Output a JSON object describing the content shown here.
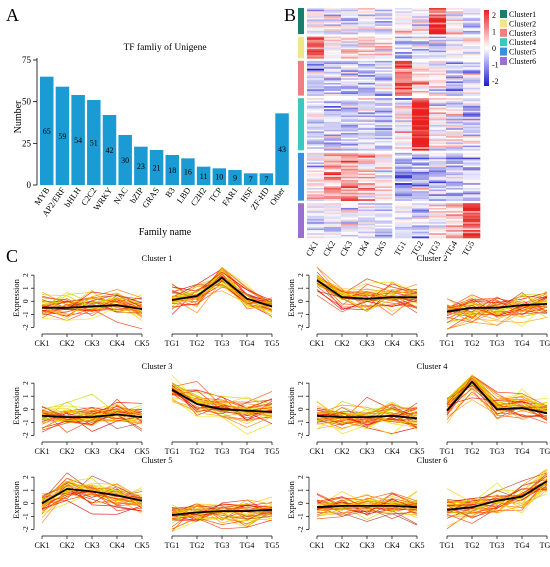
{
  "panels": {
    "a": "A",
    "b": "B",
    "c": "C"
  },
  "chart_data": [
    {
      "type": "bar",
      "title": "TF famliy of Unigene",
      "xlabel": "Family name",
      "ylabel": "Number",
      "categories": [
        "MYB",
        "AP2/ERF",
        "bHLH",
        "C2C2",
        "WRKY",
        "NAC",
        "bZIP",
        "GRAS",
        "B3",
        "LBD",
        "C2H2",
        "TCP",
        "FAR1",
        "HSF",
        "ZF-HD",
        "Other"
      ],
      "values": [
        65,
        59,
        54,
        51,
        42,
        30,
        23,
        21,
        18,
        16,
        11,
        10,
        9,
        7,
        7,
        43
      ],
      "ylim": [
        0,
        75
      ],
      "yticks": [
        0,
        25,
        50,
        75
      ],
      "bar_color": "#1b9bd3"
    },
    {
      "type": "heatmap",
      "columns": [
        "CK1",
        "CK2",
        "CK3",
        "CK4",
        "CK5",
        "TG1",
        "TG2",
        "TG3",
        "TG4",
        "TG5"
      ],
      "colorbar": {
        "ticks": [
          2,
          1,
          0,
          -1,
          -2
        ],
        "low": "#1b1bd0",
        "mid": "#ffffff",
        "high": "#e8201f"
      },
      "legend": [
        {
          "name": "Cluster1",
          "color": "#1b7d6b"
        },
        {
          "name": "Cluster2",
          "color": "#f0e68c"
        },
        {
          "name": "Cluster3",
          "color": "#f08080"
        },
        {
          "name": "Cluster4",
          "color": "#3cc8c0"
        },
        {
          "name": "Cluster5",
          "color": "#3a8fd8"
        },
        {
          "name": "Cluster6",
          "color": "#9b6fd0"
        }
      ],
      "cluster_row_fractions": [
        0.12,
        0.1,
        0.16,
        0.24,
        0.22,
        0.16
      ],
      "cluster_patterns": [
        [
          -0.2,
          -0.3,
          -0.1,
          0.0,
          -0.3,
          -0.1,
          0.0,
          2.0,
          0.1,
          -0.4
        ],
        [
          1.6,
          0.4,
          0.3,
          0.3,
          0.3,
          -0.6,
          -0.5,
          -0.5,
          -0.3,
          -0.2
        ],
        [
          -0.6,
          -0.5,
          -0.6,
          -0.4,
          -0.5,
          1.6,
          0.4,
          0.0,
          -0.4,
          -0.3
        ],
        [
          -0.5,
          -0.5,
          -0.5,
          -0.4,
          -0.5,
          -0.2,
          2.2,
          0.0,
          0.0,
          -0.3
        ],
        [
          0.0,
          1.0,
          0.9,
          0.6,
          0.2,
          -0.8,
          -0.6,
          -0.6,
          -0.5,
          -0.5
        ],
        [
          -0.3,
          -0.2,
          -0.2,
          -0.2,
          -0.3,
          -0.4,
          -0.3,
          0.2,
          0.5,
          1.8
        ]
      ]
    },
    {
      "type": "line",
      "ylabel": "Expression",
      "yticks": [
        -2,
        -1,
        0,
        1,
        2
      ],
      "ylim": [
        -2.2,
        2.7
      ],
      "groups": [
        {
          "labels": [
            "CK1",
            "CK2",
            "CK3",
            "CK4",
            "CK5"
          ]
        },
        {
          "labels": [
            "TG1",
            "TG2",
            "TG3",
            "TG4",
            "TG5"
          ]
        }
      ],
      "clusters": [
        {
          "title": "Cluster 1",
          "mean": [
            -0.5,
            -0.5,
            -0.4,
            -0.3,
            -0.6,
            0.1,
            0.4,
            1.8,
            0.2,
            -0.4
          ]
        },
        {
          "title": "Cluster 2",
          "mean": [
            1.6,
            0.3,
            0.2,
            0.3,
            0.3,
            -0.8,
            -0.5,
            -0.5,
            -0.3,
            -0.2
          ]
        },
        {
          "title": "Cluster 3",
          "mean": [
            -0.5,
            -0.6,
            -0.6,
            -0.4,
            -0.6,
            1.5,
            0.4,
            0.0,
            -0.1,
            -0.2
          ]
        },
        {
          "title": "Cluster 4",
          "mean": [
            -0.5,
            -0.6,
            -0.6,
            -0.5,
            -0.7,
            -0.1,
            2.1,
            0.0,
            0.1,
            -0.3
          ]
        },
        {
          "title": "Cluster 5",
          "mean": [
            0.0,
            1.1,
            0.9,
            0.6,
            0.2,
            -0.9,
            -0.7,
            -0.6,
            -0.6,
            -0.5
          ]
        },
        {
          "title": "Cluster 6",
          "mean": [
            -0.3,
            -0.2,
            -0.2,
            -0.2,
            -0.3,
            -0.5,
            -0.3,
            0.2,
            0.5,
            1.7
          ]
        }
      ]
    }
  ]
}
